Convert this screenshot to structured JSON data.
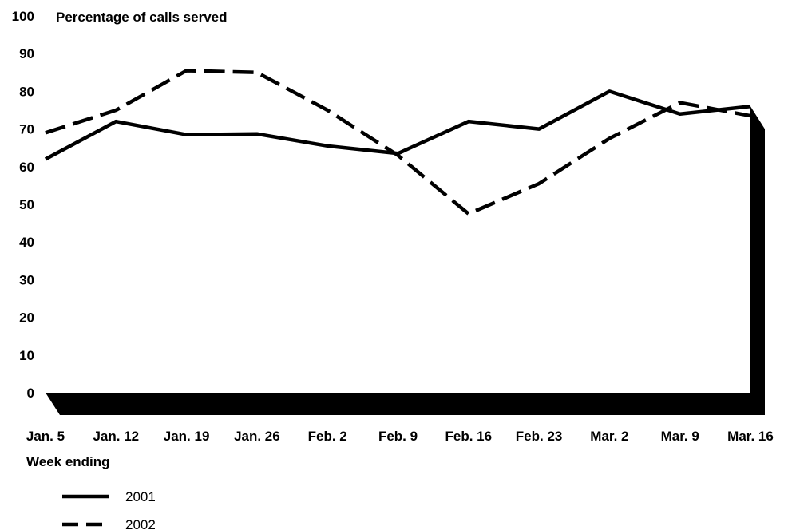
{
  "chart_data": {
    "type": "line",
    "title": "",
    "ylabel": "Percentage of calls served",
    "xlabel": "Week ending",
    "categories": [
      "Jan. 5",
      "Jan. 12",
      "Jan. 19",
      "Jan. 26",
      "Feb. 2",
      "Feb. 9",
      "Feb. 16",
      "Feb. 23",
      "Mar. 2",
      "Mar. 9",
      "Mar. 16"
    ],
    "yticks": [
      "0",
      "10",
      "20",
      "30",
      "40",
      "50",
      "60",
      "70",
      "80",
      "90",
      "100"
    ],
    "ylim": [
      0,
      100
    ],
    "grid": false,
    "legend_position": "bottom-left",
    "series": [
      {
        "name": "2001",
        "style": "solid",
        "color": "#000000",
        "values": [
          62,
          72,
          68.5,
          68.7,
          65.5,
          63.5,
          72,
          70,
          80,
          74,
          76
        ]
      },
      {
        "name": "2002",
        "style": "dashed",
        "color": "#000000",
        "values": [
          69,
          75,
          85.5,
          85,
          75,
          63,
          47.5,
          55.5,
          67.5,
          77,
          73.5
        ]
      }
    ]
  }
}
